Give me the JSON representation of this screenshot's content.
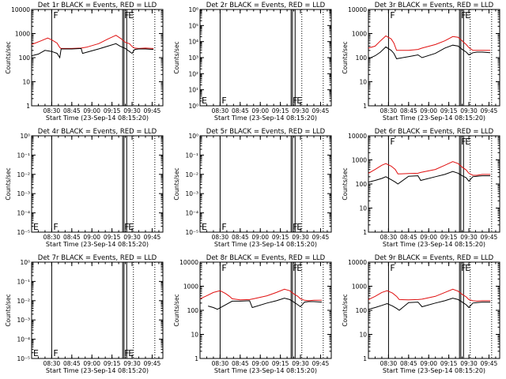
{
  "colors": {
    "events": "#000000",
    "lld": "#e01010",
    "axis": "#000000",
    "bg": "#ffffff"
  },
  "chart_data": [
    {
      "type": "line",
      "title": "Det 1r BLACK = Events, RED = LLD",
      "xlabel": "Start Time (23-Sep-14 08:15:20)",
      "ylabel": "Counts/sec",
      "x_ticks": [
        "08:30",
        "08:45",
        "09:00",
        "09:15",
        "09:30",
        "09:45"
      ],
      "y_ticks": [
        "1",
        "10",
        "100",
        "1000",
        "10000"
      ],
      "ylim": [
        1,
        10000
      ],
      "log_y": true,
      "series": [
        {
          "name": "LLD",
          "color": "red",
          "x": [
            "08:15",
            "08:22",
            "08:27",
            "08:30",
            "08:34",
            "08:36",
            "08:37",
            "08:45",
            "08:52",
            "08:56",
            "09:05",
            "09:12",
            "09:18",
            "09:22",
            "09:25",
            "09:28",
            "09:30",
            "09:32",
            "09:35",
            "09:40",
            "09:46"
          ],
          "y": [
            350,
            500,
            650,
            550,
            400,
            260,
            240,
            240,
            250,
            270,
            380,
            600,
            850,
            600,
            430,
            380,
            290,
            250,
            240,
            250,
            240
          ]
        },
        {
          "name": "Events",
          "color": "black",
          "x": [
            "08:15",
            "08:20",
            "08:25",
            "08:30",
            "08:34",
            "08:36",
            "08:37",
            "08:45",
            "08:52",
            "08:53",
            "09:05",
            "09:12",
            "09:18",
            "09:21",
            "09:25",
            "09:28",
            "09:30",
            "09:32",
            "09:35",
            "09:40",
            "09:46"
          ],
          "y": [
            120,
            140,
            200,
            180,
            150,
            100,
            230,
            230,
            240,
            150,
            230,
            300,
            380,
            300,
            240,
            180,
            150,
            220,
            230,
            230,
            220
          ]
        }
      ],
      "vlines": [
        "08:30",
        "09:23",
        "09:24",
        "09:26"
      ],
      "dotted_vlines": [
        "09:31",
        "09:47"
      ],
      "labels": [
        {
          "text": "F",
          "x": "08:30"
        },
        {
          "text": "F",
          "x": "09:23"
        },
        {
          "text": "E",
          "x": "09:26"
        }
      ]
    },
    {
      "type": "line",
      "title": "Det 2r BLACK = Events, RED = LLD",
      "xlabel": "Start Time (23-Sep-14 08:15:20)",
      "ylabel": "Counts/sec",
      "x_ticks": [
        "08:30",
        "08:45",
        "09:00",
        "09:15",
        "09:30",
        "09:45"
      ],
      "y_ticks": [
        "10⁰",
        "10¹",
        "10²",
        "10³",
        "10⁴",
        "10⁵",
        "10⁶"
      ],
      "ylim": [
        0,
        6
      ],
      "log_y": true,
      "series": [],
      "vlines": [
        "08:30",
        "09:23",
        "09:24",
        "09:26"
      ],
      "dotted_vlines": [
        "09:31",
        "09:47"
      ],
      "labels": [
        {
          "text": "E",
          "x": "08:15"
        },
        {
          "text": "F",
          "x": "08:30"
        },
        {
          "text": "F",
          "x": "09:23"
        },
        {
          "text": "E",
          "x": "09:26"
        }
      ]
    },
    {
      "type": "line",
      "title": "Det 3r BLACK = Events, RED = LLD",
      "xlabel": "Start Time (23-Sep-14 08:15:20)",
      "ylabel": "Counts/sec",
      "x_ticks": [
        "08:30",
        "08:45",
        "09:00",
        "09:15",
        "09:30",
        "09:45"
      ],
      "y_ticks": [
        "1",
        "10",
        "100",
        "1000",
        "10000"
      ],
      "ylim": [
        1,
        10000
      ],
      "log_y": true,
      "series": [
        {
          "name": "LLD",
          "color": "red",
          "x": [
            "08:15",
            "08:20",
            "08:24",
            "08:28",
            "08:32",
            "08:34",
            "08:36",
            "08:45",
            "08:52",
            "08:55",
            "09:05",
            "09:12",
            "09:18",
            "09:22",
            "09:25",
            "09:28",
            "09:30",
            "09:33",
            "09:36",
            "09:40",
            "09:46"
          ],
          "y": [
            250,
            300,
            500,
            800,
            600,
            400,
            200,
            200,
            220,
            250,
            350,
            500,
            750,
            700,
            500,
            350,
            260,
            200,
            200,
            200,
            200
          ]
        },
        {
          "name": "Events",
          "color": "black",
          "x": [
            "08:15",
            "08:20",
            "08:24",
            "08:28",
            "08:32",
            "08:34",
            "08:36",
            "08:45",
            "08:52",
            "08:55",
            "09:05",
            "09:12",
            "09:18",
            "09:22",
            "09:25",
            "09:28",
            "09:30",
            "09:33",
            "09:36",
            "09:40",
            "09:46"
          ],
          "y": [
            90,
            120,
            170,
            280,
            200,
            150,
            90,
            110,
            130,
            100,
            150,
            250,
            330,
            300,
            220,
            170,
            130,
            160,
            170,
            170,
            160
          ]
        }
      ],
      "vlines": [
        "08:30",
        "09:23",
        "09:24",
        "09:26"
      ],
      "dotted_vlines": [
        "09:31",
        "09:47"
      ],
      "labels": [
        {
          "text": "F",
          "x": "08:30"
        },
        {
          "text": "F",
          "x": "09:23"
        },
        {
          "text": "E",
          "x": "09:26"
        }
      ]
    },
    {
      "type": "line",
      "title": "Det 4r BLACK = Events, RED = LLD",
      "xlabel": "Start Time (23-Sep-14 08:15:20)",
      "ylabel": "Counts/sec",
      "x_ticks": [
        "08:30",
        "08:45",
        "09:00",
        "09:15",
        "09:30",
        "09:45"
      ],
      "y_ticks": [
        "10⁻⁵",
        "10⁻⁴",
        "10⁻³",
        "10⁻²",
        "10⁻¹",
        "10⁰"
      ],
      "ylim": [
        -5,
        0
      ],
      "log_y": true,
      "series": [],
      "vlines": [
        "08:30",
        "09:23",
        "09:24",
        "09:26"
      ],
      "dotted_vlines": [
        "09:31",
        "09:47"
      ],
      "labels": [
        {
          "text": "E",
          "x": "08:15"
        },
        {
          "text": "F",
          "x": "08:30"
        },
        {
          "text": "F",
          "x": "09:23"
        },
        {
          "text": "E",
          "x": "09:26"
        }
      ]
    },
    {
      "type": "line",
      "title": "Det 5r BLACK = Events, RED = LLD",
      "xlabel": "Start Time (23-Sep-14 08:15:20)",
      "ylabel": "Counts/sec",
      "x_ticks": [
        "08:30",
        "08:45",
        "09:00",
        "09:15",
        "09:30",
        "09:45"
      ],
      "y_ticks": [
        "10⁻⁵",
        "10⁻⁴",
        "10⁻³",
        "10⁻²",
        "10⁻¹",
        "10⁰"
      ],
      "ylim": [
        -5,
        0
      ],
      "log_y": true,
      "series": [],
      "vlines": [
        "08:30",
        "09:23",
        "09:24",
        "09:26"
      ],
      "dotted_vlines": [
        "09:31",
        "09:47"
      ],
      "labels": [
        {
          "text": "E",
          "x": "08:15"
        },
        {
          "text": "F",
          "x": "08:30"
        },
        {
          "text": "F",
          "x": "09:23"
        },
        {
          "text": "E",
          "x": "09:26"
        }
      ]
    },
    {
      "type": "line",
      "title": "Det 6r BLACK = Events, RED = LLD",
      "xlabel": "Start Time (23-Sep-14 08:15:20)",
      "ylabel": "Counts/sec",
      "x_ticks": [
        "08:30",
        "08:45",
        "09:00",
        "09:15",
        "09:30",
        "09:45"
      ],
      "y_ticks": [
        "1",
        "10",
        "100",
        "1000",
        "10000"
      ],
      "ylim": [
        1,
        10000
      ],
      "log_y": true,
      "series": [
        {
          "name": "LLD",
          "color": "red",
          "x": [
            "08:15",
            "08:20",
            "08:25",
            "08:28",
            "08:32",
            "08:35",
            "08:37",
            "08:45",
            "08:52",
            "08:54",
            "09:05",
            "09:12",
            "09:18",
            "09:22",
            "09:25",
            "09:28",
            "09:30",
            "09:33",
            "09:36",
            "09:40",
            "09:46"
          ],
          "y": [
            280,
            400,
            600,
            700,
            550,
            400,
            260,
            270,
            280,
            300,
            400,
            600,
            850,
            700,
            500,
            380,
            280,
            230,
            230,
            250,
            250
          ]
        },
        {
          "name": "Events",
          "color": "black",
          "x": [
            "08:15",
            "08:20",
            "08:25",
            "08:28",
            "08:32",
            "08:35",
            "08:37",
            "08:45",
            "08:52",
            "08:54",
            "09:05",
            "09:12",
            "09:18",
            "09:22",
            "09:25",
            "09:28",
            "09:30",
            "09:33",
            "09:36",
            "09:40",
            "09:46"
          ],
          "y": [
            120,
            140,
            170,
            200,
            150,
            120,
            100,
            210,
            220,
            140,
            200,
            250,
            330,
            280,
            220,
            180,
            130,
            200,
            210,
            220,
            220
          ]
        }
      ],
      "vlines": [
        "08:30",
        "09:23",
        "09:24",
        "09:26"
      ],
      "dotted_vlines": [
        "09:31",
        "09:47"
      ],
      "labels": [
        {
          "text": "F",
          "x": "08:30"
        },
        {
          "text": "F",
          "x": "09:23"
        },
        {
          "text": "E",
          "x": "09:26"
        }
      ]
    },
    {
      "type": "line",
      "title": "Det 7r BLACK = Events, RED = LLD",
      "xlabel": "Start Time (23-Sep-14 08:15:20)",
      "ylabel": "Counts/sec",
      "x_ticks": [
        "08:30",
        "08:45",
        "09:00",
        "09:15",
        "09:30",
        "09:45"
      ],
      "y_ticks": [
        "10⁻⁵",
        "10⁻⁴",
        "10⁻³",
        "10⁻²",
        "10⁻¹",
        "10⁰"
      ],
      "ylim": [
        -5,
        0
      ],
      "log_y": true,
      "series": [],
      "vlines": [
        "08:30",
        "09:23",
        "09:24",
        "09:26"
      ],
      "dotted_vlines": [
        "09:31",
        "09:47"
      ],
      "labels": [
        {
          "text": "E",
          "x": "08:15"
        },
        {
          "text": "F",
          "x": "08:30"
        },
        {
          "text": "F",
          "x": "09:23"
        },
        {
          "text": "E",
          "x": "09:26"
        }
      ]
    },
    {
      "type": "line",
      "title": "Det 8r BLACK = Events, RED = LLD",
      "xlabel": "Start Time (23-Sep-14 08:15:20)",
      "ylabel": "Counts/sec",
      "x_ticks": [
        "08:30",
        "08:45",
        "09:00",
        "09:15",
        "09:30",
        "09:45"
      ],
      "y_ticks": [
        "1",
        "10",
        "100",
        "1000",
        "10000"
      ],
      "ylim": [
        1,
        10000
      ],
      "log_y": true,
      "series": [
        {
          "name": "LLD",
          "color": "red",
          "x": [
            "08:15",
            "08:20",
            "08:25",
            "08:30",
            "08:34",
            "08:37",
            "08:39",
            "08:45",
            "08:52",
            "08:55",
            "09:05",
            "09:12",
            "09:18",
            "09:22",
            "09:25",
            "09:28",
            "09:30",
            "09:33",
            "09:36",
            "09:40",
            "09:46"
          ],
          "y": [
            300,
            400,
            550,
            650,
            500,
            380,
            300,
            270,
            280,
            300,
            400,
            550,
            750,
            650,
            480,
            380,
            300,
            260,
            250,
            260,
            260
          ]
        },
        {
          "name": "Events",
          "color": "black",
          "x": [
            "08:21",
            "08:25",
            "08:28",
            "08:39",
            "08:45",
            "08:52",
            "08:54",
            "09:05",
            "09:12",
            "09:18",
            "09:22",
            "09:25",
            "09:28",
            "09:30",
            "09:33",
            "09:36",
            "09:40",
            "09:46"
          ],
          "y": [
            150,
            130,
            110,
            240,
            240,
            250,
            130,
            200,
            250,
            320,
            280,
            220,
            170,
            140,
            220,
            230,
            230,
            220
          ]
        }
      ],
      "vlines": [
        "08:30",
        "09:23",
        "09:24",
        "09:26"
      ],
      "dotted_vlines": [
        "09:31",
        "09:47"
      ],
      "labels": [
        {
          "text": "F",
          "x": "08:30"
        },
        {
          "text": "F",
          "x": "09:23"
        },
        {
          "text": "E",
          "x": "09:26"
        }
      ]
    },
    {
      "type": "line",
      "title": "Det 9r BLACK = Events, RED = LLD",
      "xlabel": "Start Time (23-Sep-14 08:15:20)",
      "ylabel": "Counts/sec",
      "x_ticks": [
        "08:30",
        "08:45",
        "09:00",
        "09:15",
        "09:30",
        "09:45"
      ],
      "y_ticks": [
        "1",
        "10",
        "100",
        "1000",
        "10000"
      ],
      "ylim": [
        1,
        10000
      ],
      "log_y": true,
      "series": [
        {
          "name": "LLD",
          "color": "red",
          "x": [
            "08:15",
            "08:20",
            "08:25",
            "08:29",
            "08:33",
            "08:36",
            "08:38",
            "08:45",
            "08:52",
            "08:55",
            "09:05",
            "09:12",
            "09:18",
            "09:22",
            "09:25",
            "09:28",
            "09:30",
            "09:33",
            "09:36",
            "09:40",
            "09:46"
          ],
          "y": [
            280,
            380,
            550,
            650,
            520,
            380,
            280,
            270,
            280,
            290,
            380,
            550,
            750,
            620,
            460,
            360,
            280,
            250,
            240,
            250,
            250
          ]
        },
        {
          "name": "Events",
          "color": "black",
          "x": [
            "08:15",
            "08:20",
            "08:25",
            "08:29",
            "08:33",
            "08:36",
            "08:38",
            "08:45",
            "08:52",
            "08:55",
            "09:05",
            "09:12",
            "09:18",
            "09:22",
            "09:25",
            "09:28",
            "09:30",
            "09:33",
            "09:36",
            "09:40",
            "09:46"
          ],
          "y": [
            110,
            130,
            160,
            190,
            150,
            120,
            100,
            210,
            220,
            140,
            200,
            250,
            320,
            280,
            220,
            170,
            130,
            200,
            210,
            220,
            220
          ]
        }
      ],
      "vlines": [
        "08:30",
        "09:23",
        "09:24",
        "09:26"
      ],
      "dotted_vlines": [
        "09:31",
        "09:47"
      ],
      "labels": [
        {
          "text": "F",
          "x": "08:30"
        },
        {
          "text": "F",
          "x": "09:23"
        },
        {
          "text": "E",
          "x": "09:26"
        }
      ]
    }
  ]
}
